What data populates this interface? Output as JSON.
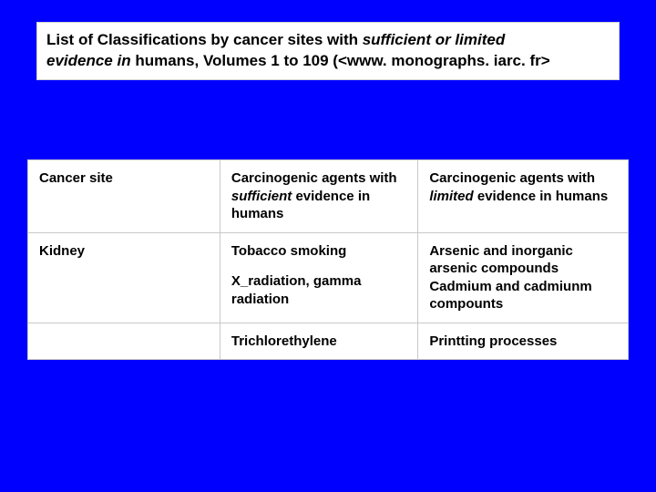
{
  "colors": {
    "background": "#0000ff",
    "cell_bg": "#ffffff",
    "cell_border": "#c8c8c8",
    "text": "#000000"
  },
  "title": {
    "line1_a": "List of Classifications by cancer sites with ",
    "line1_b_italic": "sufficient or limited",
    "line2_a_italic": "evidence in ",
    "line2_b": "humans, Volumes 1 to 109 (<www. monographs. iarc. fr>"
  },
  "table": {
    "columns": [
      "c0",
      "c1",
      "c2"
    ],
    "header": {
      "col0": "Cancer site",
      "col1_a": "Carcinogenic agents with ",
      "col1_b_italic": "sufficient",
      "col1_c": " evidence in humans",
      "col2_a": "Carcinogenic agents with ",
      "col2_b_italic": "limited",
      "col2_c": " evidence in humans"
    },
    "row1": {
      "col0": "Kidney",
      "col1_p1": "Tobacco smoking",
      "col1_p2": "X_radiation, gamma radiation",
      "col2_p1": "Arsenic and inorganic arsenic compounds Cadmium and cadmiunm compounts"
    },
    "row2": {
      "col0": "",
      "col1": "Trichlorethylene",
      "col2": "Printting processes"
    }
  }
}
